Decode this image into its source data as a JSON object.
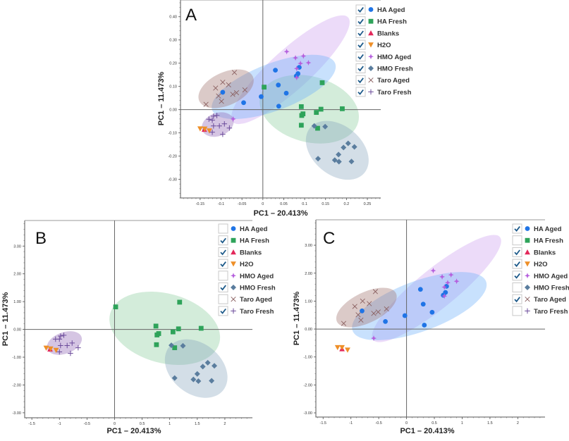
{
  "chart_data": [
    {
      "type": "scatter",
      "panel_label": "A",
      "xlabel": "PC1 – 20.413%",
      "ylabel": "PC1 – 11.473%",
      "xlim": [
        -0.197,
        0.282
      ],
      "ylim": [
        -0.38,
        0.472
      ],
      "xticks": [
        -0.15,
        -0.1,
        -0.05,
        0,
        0.05,
        0.1,
        0.15,
        0.2,
        0.25
      ],
      "xtick_labels": [
        "-0.15",
        "-0.1",
        "-0.05",
        "0",
        "0.05",
        "0.1",
        "0.15",
        "0.2",
        "0.25"
      ],
      "yticks": [
        -0.3,
        -0.2,
        -0.1,
        0,
        0.1,
        0.2,
        0.3,
        0.4
      ],
      "ytick_labels": [
        "-0.30",
        "-0.20",
        "-0.10",
        "0.00",
        "0.10",
        "0.20",
        "0.30",
        "0.40"
      ],
      "legend": {
        "placement": "top-right",
        "checked": [
          true,
          true,
          true,
          true,
          true,
          true,
          true,
          true
        ]
      },
      "series": [
        {
          "name": "HA Aged",
          "points": [
            [
              -0.096,
              0.075
            ],
            [
              -0.046,
              0.03
            ],
            [
              -0.004,
              0.056
            ],
            [
              0.03,
              0.17
            ],
            [
              0.037,
              0.106
            ],
            [
              0.038,
              0.015
            ],
            [
              0.056,
              0.071
            ],
            [
              0.08,
              0.145
            ],
            [
              0.084,
              0.155
            ],
            [
              0.087,
              0.182
            ]
          ]
        },
        {
          "name": "HA Fresh",
          "points": [
            [
              0.003,
              0.097
            ],
            [
              0.142,
              0.116
            ],
            [
              0.092,
              0.013
            ],
            [
              0.093,
              -0.025
            ],
            [
              0.096,
              -0.018
            ],
            [
              0.128,
              -0.012
            ],
            [
              0.139,
              0.002
            ],
            [
              0.19,
              0.004
            ],
            [
              0.092,
              -0.067
            ],
            [
              0.131,
              -0.08
            ]
          ]
        },
        {
          "name": "Blanks",
          "points": [
            [
              -0.14,
              -0.085
            ]
          ]
        },
        {
          "name": "H2O",
          "points": [
            [
              -0.15,
              -0.082
            ],
            [
              -0.139,
              -0.083
            ],
            [
              -0.128,
              -0.091
            ]
          ]
        },
        {
          "name": "HMO Aged",
          "points": [
            [
              0.057,
              0.25
            ],
            [
              0.078,
              0.223
            ],
            [
              0.097,
              0.231
            ],
            [
              0.09,
              0.199
            ],
            [
              0.109,
              0.202
            ],
            [
              0.081,
              0.177
            ],
            [
              0.081,
              0.138
            ],
            [
              -0.071,
              -0.04
            ]
          ]
        },
        {
          "name": "HMO Fresh",
          "points": [
            [
              0.123,
              -0.07
            ],
            [
              0.149,
              -0.073
            ],
            [
              0.132,
              -0.211
            ],
            [
              0.172,
              -0.217
            ],
            [
              0.182,
              -0.224
            ],
            [
              0.181,
              -0.193
            ],
            [
              0.193,
              -0.163
            ],
            [
              0.204,
              -0.145
            ],
            [
              0.219,
              -0.16
            ],
            [
              0.212,
              -0.223
            ]
          ]
        },
        {
          "name": "Taro Aged",
          "points": [
            [
              -0.136,
              0.023
            ],
            [
              -0.113,
              0.093
            ],
            [
              -0.096,
              0.118
            ],
            [
              -0.106,
              0.059
            ],
            [
              -0.099,
              0.036
            ],
            [
              -0.082,
              0.107
            ],
            [
              -0.072,
              0.066
            ],
            [
              -0.063,
              0.073
            ],
            [
              -0.068,
              0.16
            ],
            [
              -0.043,
              0.085
            ]
          ]
        },
        {
          "name": "Taro Fresh",
          "points": [
            [
              -0.129,
              -0.041
            ],
            [
              -0.121,
              -0.045
            ],
            [
              -0.118,
              -0.028
            ],
            [
              -0.11,
              -0.025
            ],
            [
              -0.118,
              -0.07
            ],
            [
              -0.104,
              -0.07
            ],
            [
              -0.092,
              -0.061
            ],
            [
              -0.08,
              -0.079
            ],
            [
              -0.121,
              -0.097
            ],
            [
              -0.096,
              -0.106
            ]
          ]
        }
      ],
      "ellipses": [
        {
          "series": "HMO Aged",
          "center": [
            0.066,
            0.172
          ],
          "major_end": [
            0.204,
            0.397
          ],
          "minor_end": [
            0.098,
            0.108
          ]
        },
        {
          "series": "HA Fresh",
          "center": [
            0.111,
            0.002
          ],
          "major_end": [
            0.228,
            -0.055
          ],
          "minor_end": [
            0.09,
            -0.134
          ]
        },
        {
          "series": "HMO Fresh",
          "center": [
            0.178,
            -0.175
          ],
          "major_end": [
            0.243,
            -0.272
          ],
          "minor_end": [
            0.14,
            -0.256
          ]
        },
        {
          "series": "HA Aged",
          "center": [
            0.026,
            0.098
          ],
          "major_end": [
            0.173,
            0.199
          ],
          "minor_end": [
            0.047,
            0.004
          ]
        },
        {
          "series": "Taro Aged",
          "center": [
            -0.088,
            0.09
          ],
          "major_end": [
            -0.024,
            0.143
          ],
          "minor_end": [
            -0.071,
            0.026
          ]
        },
        {
          "series": "Taro Fresh",
          "center": [
            -0.108,
            -0.064
          ],
          "major_end": [
            -0.071,
            -0.039
          ],
          "minor_end": [
            -0.099,
            -0.111
          ]
        }
      ]
    },
    {
      "type": "scatter",
      "panel_label": "B",
      "xlabel": "PC1 – 20.413%",
      "ylabel": "PC1 – 11.473%",
      "xlim": [
        -1.63,
        2.5
      ],
      "ylim": [
        -3.18,
        3.92
      ],
      "xticks": [
        -1.5,
        -1,
        -0.5,
        0,
        0.5,
        1,
        1.5,
        2
      ],
      "xtick_labels": [
        "-1.5",
        "-1",
        "-0.5",
        "0",
        "0.5",
        "1",
        "1.5",
        "2"
      ],
      "yticks": [
        -3,
        -2,
        -1,
        0,
        1,
        2,
        3
      ],
      "ytick_labels": [
        "-3.00",
        "-2.00",
        "-1.00",
        "0.00",
        "1.00",
        "2.00",
        "3.00"
      ],
      "legend": {
        "placement": "top-right",
        "checked": [
          false,
          true,
          true,
          true,
          false,
          true,
          false,
          true
        ]
      },
      "series": [
        {
          "name": "HA Aged",
          "points": []
        },
        {
          "name": "HA Fresh",
          "points": [
            [
              0.02,
              0.81
            ],
            [
              1.18,
              0.98
            ],
            [
              0.75,
              0.12
            ],
            [
              0.77,
              -0.2
            ],
            [
              0.8,
              -0.15
            ],
            [
              1.06,
              -0.09
            ],
            [
              1.16,
              0.02
            ],
            [
              1.57,
              0.04
            ],
            [
              0.76,
              -0.55
            ],
            [
              1.09,
              -0.66
            ]
          ]
        },
        {
          "name": "Blanks",
          "points": [
            [
              -1.17,
              -0.71
            ]
          ]
        },
        {
          "name": "H2O",
          "points": [
            [
              -1.24,
              -0.67
            ],
            [
              -1.16,
              -0.7
            ],
            [
              -1.06,
              -0.75
            ]
          ]
        },
        {
          "name": "HMO Aged",
          "points": []
        },
        {
          "name": "HMO Fresh",
          "points": [
            [
              1.03,
              -0.57
            ],
            [
              1.24,
              -0.59
            ],
            [
              1.09,
              -1.75
            ],
            [
              1.43,
              -1.8
            ],
            [
              1.52,
              -1.86
            ],
            [
              1.5,
              -1.6
            ],
            [
              1.6,
              -1.34
            ],
            [
              1.69,
              -1.2
            ],
            [
              1.81,
              -1.31
            ],
            [
              1.76,
              -1.85
            ]
          ]
        },
        {
          "name": "Taro Aged",
          "points": []
        },
        {
          "name": "Taro Fresh",
          "points": [
            [
              -1.07,
              -0.35
            ],
            [
              -1.0,
              -0.35
            ],
            [
              -0.98,
              -0.24
            ],
            [
              -0.92,
              -0.21
            ],
            [
              -0.98,
              -0.58
            ],
            [
              -0.86,
              -0.58
            ],
            [
              -0.77,
              -0.49
            ],
            [
              -0.66,
              -0.66
            ],
            [
              -1.0,
              -0.81
            ],
            [
              -0.8,
              -0.86
            ]
          ]
        }
      ],
      "ellipses": [
        {
          "series": "HA Fresh",
          "center": [
            0.91,
            0.04
          ],
          "major_end": [
            1.9,
            -0.49
          ],
          "minor_end": [
            0.75,
            -1.17
          ]
        },
        {
          "series": "HMO Fresh",
          "center": [
            1.48,
            -1.41
          ],
          "major_end": [
            1.97,
            -2.19
          ],
          "minor_end": [
            1.16,
            -2.06
          ]
        },
        {
          "series": "Taro Fresh",
          "center": [
            -0.91,
            -0.49
          ],
          "major_end": [
            -0.6,
            -0.27
          ],
          "minor_end": [
            -0.84,
            -0.85
          ]
        }
      ]
    },
    {
      "type": "scatter",
      "panel_label": "C",
      "xlabel": "PC1 – 20.413%",
      "ylabel": "PC1 – 11.473%",
      "xlim": [
        -1.63,
        2.49
      ],
      "ylim": [
        -3.15,
        3.91
      ],
      "xticks": [
        -1.5,
        -1,
        -0.5,
        0,
        0.5,
        1,
        1.5,
        2
      ],
      "xtick_labels": [
        "-1.5",
        "-1",
        "-0.5",
        "0",
        "0.5",
        "1",
        "1.5",
        "2"
      ],
      "yticks": [
        -3,
        -2,
        -1,
        0,
        1,
        2,
        3
      ],
      "ytick_labels": [
        "-3.00",
        "-2.00",
        "-1.00",
        "0.00",
        "1.00",
        "2.00",
        "3.00"
      ],
      "legend": {
        "placement": "top-right",
        "checked": [
          true,
          false,
          true,
          true,
          true,
          false,
          true,
          false
        ]
      },
      "series": [
        {
          "name": "HA Aged",
          "points": [
            [
              -0.8,
              0.65
            ],
            [
              -0.38,
              0.27
            ],
            [
              -0.03,
              0.48
            ],
            [
              0.25,
              1.42
            ],
            [
              0.3,
              0.89
            ],
            [
              0.32,
              0.14
            ],
            [
              0.46,
              0.6
            ],
            [
              0.66,
              1.21
            ],
            [
              0.7,
              1.31
            ],
            [
              0.72,
              1.53
            ]
          ]
        },
        {
          "name": "HA Fresh",
          "points": []
        },
        {
          "name": "Blanks",
          "points": [
            [
              -1.16,
              -0.71
            ]
          ]
        },
        {
          "name": "H2O",
          "points": [
            [
              -1.24,
              -0.66
            ],
            [
              -1.16,
              -0.66
            ],
            [
              -1.06,
              -0.75
            ]
          ]
        },
        {
          "name": "HMO Aged",
          "points": [
            [
              0.48,
              2.09
            ],
            [
              0.64,
              1.87
            ],
            [
              0.8,
              1.94
            ],
            [
              0.74,
              1.66
            ],
            [
              0.9,
              1.71
            ],
            [
              0.68,
              1.5
            ],
            [
              0.68,
              1.18
            ],
            [
              -0.59,
              -0.33
            ]
          ]
        },
        {
          "name": "HMO Fresh",
          "points": []
        },
        {
          "name": "Taro Aged",
          "points": [
            [
              -1.13,
              0.2
            ],
            [
              -0.93,
              0.81
            ],
            [
              -0.79,
              1.0
            ],
            [
              -0.87,
              0.51
            ],
            [
              -0.82,
              0.32
            ],
            [
              -0.67,
              0.91
            ],
            [
              -0.59,
              0.56
            ],
            [
              -0.51,
              0.61
            ],
            [
              -0.56,
              1.34
            ],
            [
              -0.36,
              0.72
            ]
          ]
        },
        {
          "name": "Taro Fresh",
          "points": []
        }
      ],
      "ellipses": [
        {
          "series": "HMO Aged",
          "center": [
            0.54,
            1.45
          ],
          "major_end": [
            1.68,
            3.29
          ],
          "minor_end": [
            0.73,
            0.86
          ]
        },
        {
          "series": "HA Aged",
          "center": [
            0.23,
            0.82
          ],
          "major_end": [
            1.43,
            1.7
          ],
          "minor_end": [
            0.38,
            -0.03
          ]
        },
        {
          "series": "Taro Aged",
          "center": [
            -0.72,
            0.77
          ],
          "major_end": [
            -0.19,
            1.28
          ],
          "minor_end": [
            -0.61,
            0.27
          ]
        }
      ]
    }
  ],
  "legend_items": [
    {
      "name": "HA Aged",
      "marker": "circle",
      "color": "#1f74e6",
      "fill": "rgba(110,175,250,0.38)"
    },
    {
      "name": "HA Fresh",
      "marker": "square",
      "color": "#2ea35a",
      "fill": "rgba(130,200,150,0.35)"
    },
    {
      "name": "Blanks",
      "marker": "triangle-up",
      "color": "#e3285a",
      "fill": "none"
    },
    {
      "name": "H2O",
      "marker": "triangle-down",
      "color": "#ee8f28",
      "fill": "none"
    },
    {
      "name": "HMO Aged",
      "marker": "star4",
      "color": "#b55fdd",
      "fill": "rgba(205,160,240,0.38)"
    },
    {
      "name": "HMO Fresh",
      "marker": "diamond",
      "color": "#5a7d9e",
      "fill": "rgba(130,160,185,0.35)"
    },
    {
      "name": "Taro Aged",
      "marker": "x",
      "color": "#8a6060",
      "fill": "rgba(160,115,110,0.38)"
    },
    {
      "name": "Taro Fresh",
      "marker": "plus",
      "color": "#6a4a9a",
      "fill": "rgba(150,110,185,0.4)"
    }
  ],
  "checkbox_color": "#1d5a8a"
}
